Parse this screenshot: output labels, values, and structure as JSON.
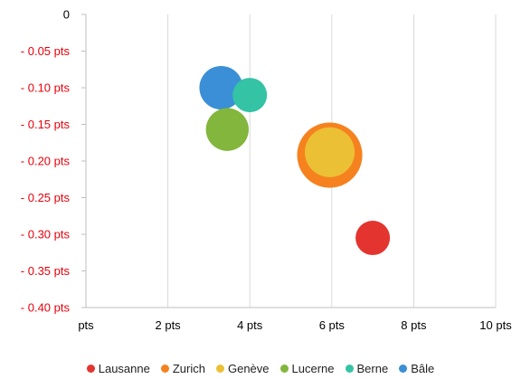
{
  "chart_data": {
    "type": "bubble",
    "title": "",
    "xlabel": "",
    "ylabel": "",
    "xlim": [
      0,
      10
    ],
    "ylim": [
      -0.4,
      0
    ],
    "x_ticks": [
      {
        "value": 0,
        "label": "pts"
      },
      {
        "value": 2,
        "label": "2 pts"
      },
      {
        "value": 4,
        "label": "4 pts"
      },
      {
        "value": 6,
        "label": "6 pts"
      },
      {
        "value": 8,
        "label": "8 pts"
      },
      {
        "value": 10,
        "label": "10 pts"
      }
    ],
    "y_ticks": [
      {
        "value": 0,
        "label": "0"
      },
      {
        "value": -0.05,
        "label": "- 0.05 pts"
      },
      {
        "value": -0.1,
        "label": "- 0.10 pts"
      },
      {
        "value": -0.15,
        "label": "- 0.15 pts"
      },
      {
        "value": -0.2,
        "label": "- 0.20 pts"
      },
      {
        "value": -0.25,
        "label": "- 0.25 pts"
      },
      {
        "value": -0.3,
        "label": "- 0.30 pts"
      },
      {
        "value": -0.35,
        "label": "- 0.35 pts"
      },
      {
        "value": -0.4,
        "label": "- 0.40 pts"
      }
    ],
    "tick_label_colors": {
      "y_zero": "#000000",
      "y_negative": "#e8000b",
      "x": "#000000"
    },
    "grid": {
      "vertical": true,
      "horizontal": false
    },
    "legend_position": "bottom",
    "series": [
      {
        "name": "Lausanne",
        "color": "#e3342f",
        "x": 7.0,
        "y": -0.305,
        "size": 1.0
      },
      {
        "name": "Zurich",
        "color": "#f5821f",
        "x": 5.95,
        "y": -0.192,
        "size": 3.6
      },
      {
        "name": "Genève",
        "color": "#ecc035",
        "x": 5.95,
        "y": -0.188,
        "size": 2.1
      },
      {
        "name": "Lucerne",
        "color": "#82b63c",
        "x": 3.45,
        "y": -0.157,
        "size": 1.55
      },
      {
        "name": "Berne",
        "color": "#34c3a5",
        "x": 4.0,
        "y": -0.11,
        "size": 1.0
      },
      {
        "name": "Bâle",
        "color": "#3a8fd6",
        "x": 3.3,
        "y": -0.1,
        "size": 1.6
      }
    ]
  }
}
